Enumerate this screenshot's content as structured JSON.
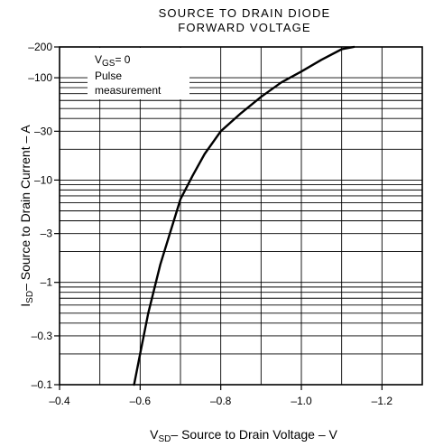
{
  "chart_data": {
    "type": "line",
    "title_lines": [
      "SOURCE TO DRAIN DIODE",
      "FORWARD VOLTAGE"
    ],
    "xlabel": {
      "main": "V",
      "sub": "SD",
      "rest": "– Source to Drain Voltage – V"
    },
    "ylabel": {
      "main": "I",
      "sub": "SD",
      "rest": "– Source to Drain Current – A"
    },
    "x_ticks": [
      {
        "value": -0.4,
        "label": "–0.4"
      },
      {
        "value": -0.6,
        "label": "–0.6"
      },
      {
        "value": -0.8,
        "label": "–0.8"
      },
      {
        "value": -1.0,
        "label": "–1.0"
      },
      {
        "value": -1.2,
        "label": "–1.2"
      }
    ],
    "y_ticks": [
      {
        "value": -0.1,
        "label": "–0.1"
      },
      {
        "value": -0.3,
        "label": "–0.3"
      },
      {
        "value": -1,
        "label": "–1"
      },
      {
        "value": -3,
        "label": "–3"
      },
      {
        "value": -10,
        "label": "–10"
      },
      {
        "value": -30,
        "label": "–30"
      },
      {
        "value": -100,
        "label": "–100"
      },
      {
        "value": -200,
        "label": "–200"
      }
    ],
    "xlim": [
      -0.4,
      -1.3
    ],
    "ylim": [
      -0.1,
      -200
    ],
    "y_scale": "log",
    "grid": true,
    "annotation": {
      "line1_main": "V",
      "line1_sub": "GS",
      "line1_rest": "= 0",
      "line2": "Pulse",
      "line3": "measurement"
    },
    "series": [
      {
        "x": [
          -0.585,
          -0.6,
          -0.62,
          -0.65,
          -0.7,
          -0.73,
          -0.76,
          -0.8,
          -0.85,
          -0.9,
          -0.95,
          -1.0,
          -1.05,
          -1.1,
          -1.13
        ],
        "y": [
          -0.1,
          -0.2,
          -0.5,
          -1.5,
          -6.5,
          -11,
          -18,
          -30,
          -45,
          -65,
          -90,
          -115,
          -150,
          -190,
          -200
        ]
      }
    ]
  }
}
